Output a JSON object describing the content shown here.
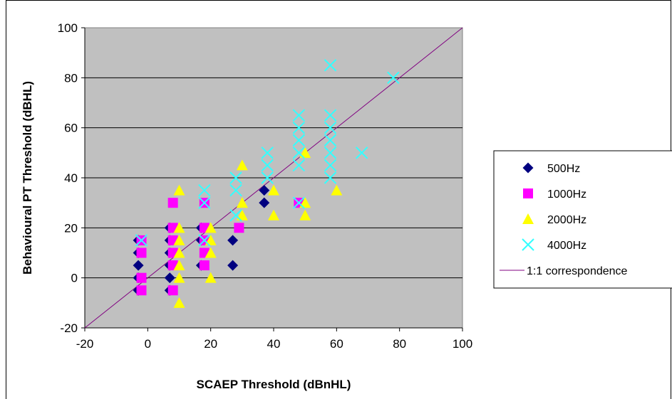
{
  "chart_data": {
    "type": "scatter",
    "xlabel": "SCAEP Threshold (dBnHL)",
    "ylabel": "Behavioural PT Threshold (dBHL)",
    "xlim": [
      -20,
      100
    ],
    "ylim": [
      -20,
      100
    ],
    "x_ticks": [
      "-20",
      "0",
      "20",
      "40",
      "60",
      "80",
      "100"
    ],
    "y_ticks": [
      "-20",
      "0",
      "20",
      "40",
      "60",
      "80",
      "100"
    ],
    "grid": "horizontal",
    "legend_position": "right",
    "plot_background": "#c0c0c0",
    "series": [
      {
        "name": "500Hz",
        "marker": "diamond",
        "color": "#000080",
        "points": [
          [
            -3,
            15
          ],
          [
            -3,
            10
          ],
          [
            -3,
            5
          ],
          [
            -3,
            0
          ],
          [
            -3,
            -5
          ],
          [
            7,
            20
          ],
          [
            7,
            15
          ],
          [
            7,
            10
          ],
          [
            7,
            5
          ],
          [
            7,
            0
          ],
          [
            7,
            -5
          ],
          [
            17,
            20
          ],
          [
            17,
            15
          ],
          [
            17,
            5
          ],
          [
            27,
            15
          ],
          [
            27,
            5
          ],
          [
            37,
            35
          ],
          [
            37,
            30
          ]
        ]
      },
      {
        "name": "1000Hz",
        "marker": "square",
        "color": "#ff00ff",
        "points": [
          [
            -2,
            15
          ],
          [
            -2,
            10
          ],
          [
            -2,
            0
          ],
          [
            -2,
            -5
          ],
          [
            8,
            30
          ],
          [
            8,
            20
          ],
          [
            8,
            15
          ],
          [
            8,
            10
          ],
          [
            8,
            5
          ],
          [
            8,
            -5
          ],
          [
            18,
            30
          ],
          [
            18,
            20
          ],
          [
            18,
            15
          ],
          [
            18,
            10
          ],
          [
            18,
            5
          ],
          [
            29,
            20
          ],
          [
            48,
            30
          ]
        ]
      },
      {
        "name": "2000Hz",
        "marker": "triangle",
        "color": "#ffff00",
        "points": [
          [
            10,
            35
          ],
          [
            10,
            20
          ],
          [
            10,
            15
          ],
          [
            10,
            10
          ],
          [
            10,
            5
          ],
          [
            10,
            0
          ],
          [
            10,
            -10
          ],
          [
            20,
            20
          ],
          [
            20,
            15
          ],
          [
            20,
            10
          ],
          [
            20,
            0
          ],
          [
            30,
            45
          ],
          [
            30,
            30
          ],
          [
            30,
            25
          ],
          [
            40,
            35
          ],
          [
            40,
            25
          ],
          [
            50,
            50
          ],
          [
            50,
            30
          ],
          [
            50,
            25
          ],
          [
            60,
            35
          ]
        ]
      },
      {
        "name": "4000Hz",
        "marker": "x",
        "color": "#33ffff",
        "points": [
          [
            -2,
            15
          ],
          [
            18,
            35
          ],
          [
            18,
            30
          ],
          [
            18,
            15
          ],
          [
            28,
            40
          ],
          [
            28,
            35
          ],
          [
            28,
            25
          ],
          [
            38,
            50
          ],
          [
            38,
            45
          ],
          [
            38,
            40
          ],
          [
            48,
            65
          ],
          [
            48,
            60
          ],
          [
            48,
            55
          ],
          [
            48,
            50
          ],
          [
            48,
            45
          ],
          [
            48,
            30
          ],
          [
            58,
            85
          ],
          [
            58,
            65
          ],
          [
            58,
            60
          ],
          [
            58,
            55
          ],
          [
            58,
            50
          ],
          [
            58,
            45
          ],
          [
            58,
            40
          ],
          [
            68,
            50
          ],
          [
            78,
            80
          ]
        ]
      },
      {
        "name": "1:1 correspondence",
        "marker": "line",
        "color": "#800080",
        "points": [
          [
            -20,
            -20
          ],
          [
            100,
            100
          ]
        ]
      }
    ]
  }
}
